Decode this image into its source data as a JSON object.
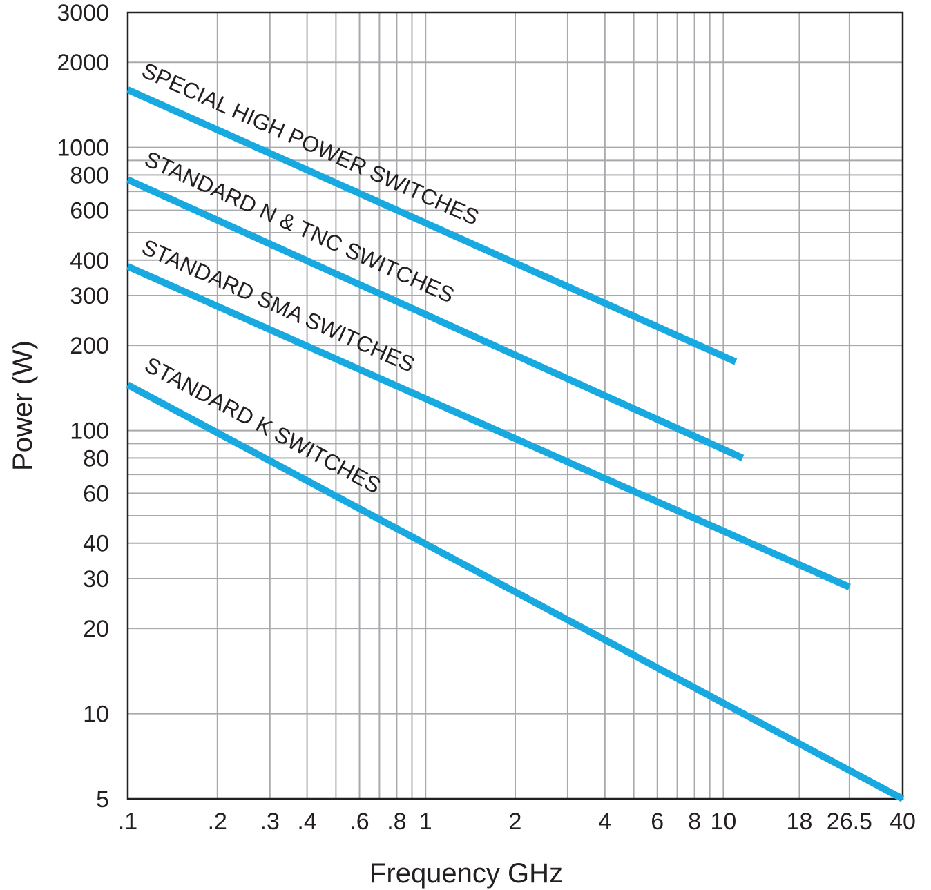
{
  "chart_data": {
    "type": "line",
    "xlabel": "Frequency GHz",
    "ylabel": "Power (W)",
    "x_scale": "log",
    "y_scale": "log",
    "xlim": [
      0.1,
      40
    ],
    "ylim": [
      5,
      3000
    ],
    "grid": true,
    "x_ticks": [
      {
        "value": 0.1,
        "label": ".1"
      },
      {
        "value": 0.2,
        "label": ".2"
      },
      {
        "value": 0.3,
        "label": ".3"
      },
      {
        "value": 0.4,
        "label": ".4"
      },
      {
        "value": 0.6,
        "label": ".6"
      },
      {
        "value": 0.8,
        "label": ".8"
      },
      {
        "value": 1,
        "label": "1"
      },
      {
        "value": 2,
        "label": "2"
      },
      {
        "value": 4,
        "label": "4"
      },
      {
        "value": 6,
        "label": "6"
      },
      {
        "value": 8,
        "label": "8"
      },
      {
        "value": 10,
        "label": "10"
      },
      {
        "value": 18,
        "label": "18"
      },
      {
        "value": 26.5,
        "label": "26.5"
      },
      {
        "value": 40,
        "label": "40"
      }
    ],
    "x_gridlines": [
      0.2,
      0.3,
      0.4,
      0.5,
      0.6,
      0.7,
      0.8,
      0.9,
      1,
      2,
      3,
      4,
      5,
      6,
      7,
      8,
      9,
      10,
      18,
      26.5
    ],
    "y_ticks": [
      {
        "value": 3000,
        "label": "3000"
      },
      {
        "value": 2000,
        "label": "2000"
      },
      {
        "value": 1000,
        "label": "1000"
      },
      {
        "value": 800,
        "label": "800"
      },
      {
        "value": 600,
        "label": "600"
      },
      {
        "value": 400,
        "label": "400"
      },
      {
        "value": 300,
        "label": "300"
      },
      {
        "value": 200,
        "label": "200"
      },
      {
        "value": 100,
        "label": "100"
      },
      {
        "value": 80,
        "label": "80"
      },
      {
        "value": 60,
        "label": "60"
      },
      {
        "value": 40,
        "label": "40"
      },
      {
        "value": 30,
        "label": "30"
      },
      {
        "value": 20,
        "label": "20"
      },
      {
        "value": 10,
        "label": "10"
      },
      {
        "value": 5,
        "label": "5"
      }
    ],
    "y_gridlines": [
      2000,
      1000,
      900,
      800,
      700,
      600,
      500,
      400,
      300,
      200,
      100,
      90,
      80,
      70,
      60,
      50,
      40,
      30,
      20,
      10
    ],
    "series": [
      {
        "name": "SPECIAL HIGH POWER SWITCHES",
        "x": [
          0.1,
          11
        ],
        "y": [
          1600,
          175
        ]
      },
      {
        "name": "STANDARD N & TNC SWITCHES",
        "x": [
          0.1,
          11.6
        ],
        "y": [
          770,
          80
        ]
      },
      {
        "name": "STANDARD SMA SWITCHES",
        "x": [
          0.1,
          26.5
        ],
        "y": [
          380,
          28
        ]
      },
      {
        "name": "STANDARD K SWITCHES",
        "x": [
          0.1,
          40
        ],
        "y": [
          145,
          5
        ]
      }
    ],
    "line_color": "#18a9e1"
  }
}
